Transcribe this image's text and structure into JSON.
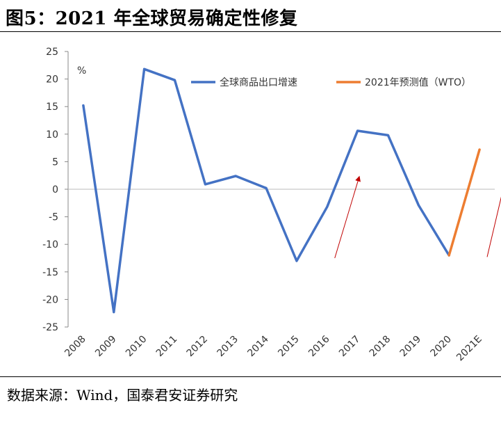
{
  "header": {
    "title": "图5：2021 年全球贸易确定性修复"
  },
  "footer": {
    "source": "数据来源：Wind，国泰君安证券研究"
  },
  "chart_data": {
    "type": "line",
    "title": "",
    "xlabel": "",
    "ylabel": "%",
    "ylim": [
      -25,
      25
    ],
    "yticks": [
      25,
      20,
      15,
      10,
      5,
      0,
      -5,
      -10,
      -15,
      -20,
      -25
    ],
    "categories": [
      "2008",
      "2009",
      "2010",
      "2011",
      "2012",
      "2013",
      "2014",
      "2015",
      "2016",
      "2017",
      "2018",
      "2019",
      "2020",
      "2021E"
    ],
    "series": [
      {
        "name": "全球商品出口增速",
        "color": "#4472C4",
        "values": [
          15.2,
          -22.3,
          21.8,
          19.8,
          0.9,
          2.4,
          0.2,
          -13.0,
          -3.2,
          10.6,
          9.8,
          -2.9,
          -12.0,
          null
        ]
      },
      {
        "name": "2021年预测值（WTO）",
        "color": "#ED7D31",
        "values": [
          null,
          null,
          null,
          null,
          null,
          null,
          null,
          null,
          null,
          null,
          null,
          null,
          -12.0,
          7.2
        ]
      }
    ],
    "legend_position": "top-right",
    "grid": false,
    "annotations": [
      {
        "type": "arrow",
        "color": "#C00000",
        "from": [
          8.25,
          -12.5
        ],
        "to": [
          9.05,
          2.2
        ]
      },
      {
        "type": "arrow",
        "color": "#C00000",
        "from": [
          13.25,
          -12.3
        ],
        "to": [
          13.85,
          1.8
        ]
      }
    ]
  }
}
